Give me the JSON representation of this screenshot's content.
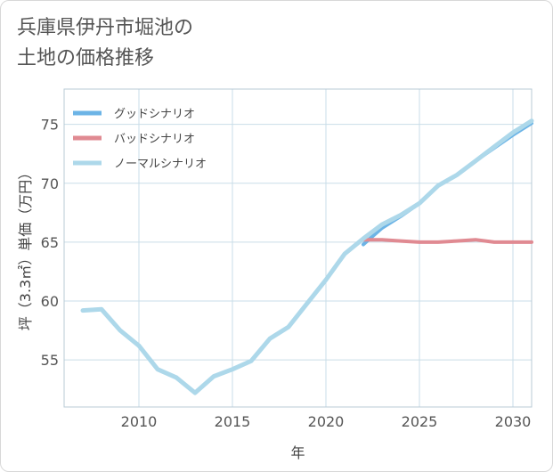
{
  "title_lines": [
    "兵庫県伊丹市堀池の",
    "土地の価格推移"
  ],
  "chart_data": {
    "type": "line",
    "title": "兵庫県伊丹市堀池の土地の価格推移",
    "xlabel": "年",
    "ylabel": "坪（3.3㎡）単価（万円）",
    "xlim": [
      2006,
      2031
    ],
    "ylim": [
      51,
      78
    ],
    "x_ticks": [
      2010,
      2015,
      2020,
      2025,
      2030
    ],
    "y_ticks": [
      55,
      60,
      65,
      70,
      75
    ],
    "grid": true,
    "legend_position": "top-left",
    "series": [
      {
        "name": "グッドシナリオ",
        "color": "#6cb4e6",
        "x": [
          2022,
          2023,
          2024,
          2025,
          2026,
          2027,
          2028,
          2029,
          2030,
          2031
        ],
        "values": [
          64.8,
          66.2,
          67.2,
          68.3,
          69.8,
          70.7,
          71.9,
          73.0,
          74.1,
          75.1
        ]
      },
      {
        "name": "バッドシナリオ",
        "color": "#e08a92",
        "x": [
          2022,
          2023,
          2024,
          2025,
          2026,
          2027,
          2028,
          2029,
          2030,
          2031
        ],
        "values": [
          65.2,
          65.2,
          65.1,
          65.0,
          65.0,
          65.1,
          65.2,
          65.0,
          65.0,
          65.0
        ]
      },
      {
        "name": "ノーマルシナリオ",
        "color": "#add8ea",
        "x": [
          2007,
          2008,
          2009,
          2010,
          2011,
          2012,
          2013,
          2014,
          2015,
          2016,
          2017,
          2018,
          2019,
          2020,
          2021,
          2022,
          2023,
          2024,
          2025,
          2026,
          2027,
          2028,
          2029,
          2030,
          2031
        ],
        "values": [
          59.2,
          59.3,
          57.5,
          56.2,
          54.2,
          53.5,
          52.2,
          53.6,
          54.2,
          54.9,
          56.8,
          57.8,
          59.8,
          61.8,
          64.0,
          65.3,
          66.5,
          67.3,
          68.3,
          69.8,
          70.7,
          71.9,
          73.1,
          74.3,
          75.3
        ]
      }
    ]
  }
}
